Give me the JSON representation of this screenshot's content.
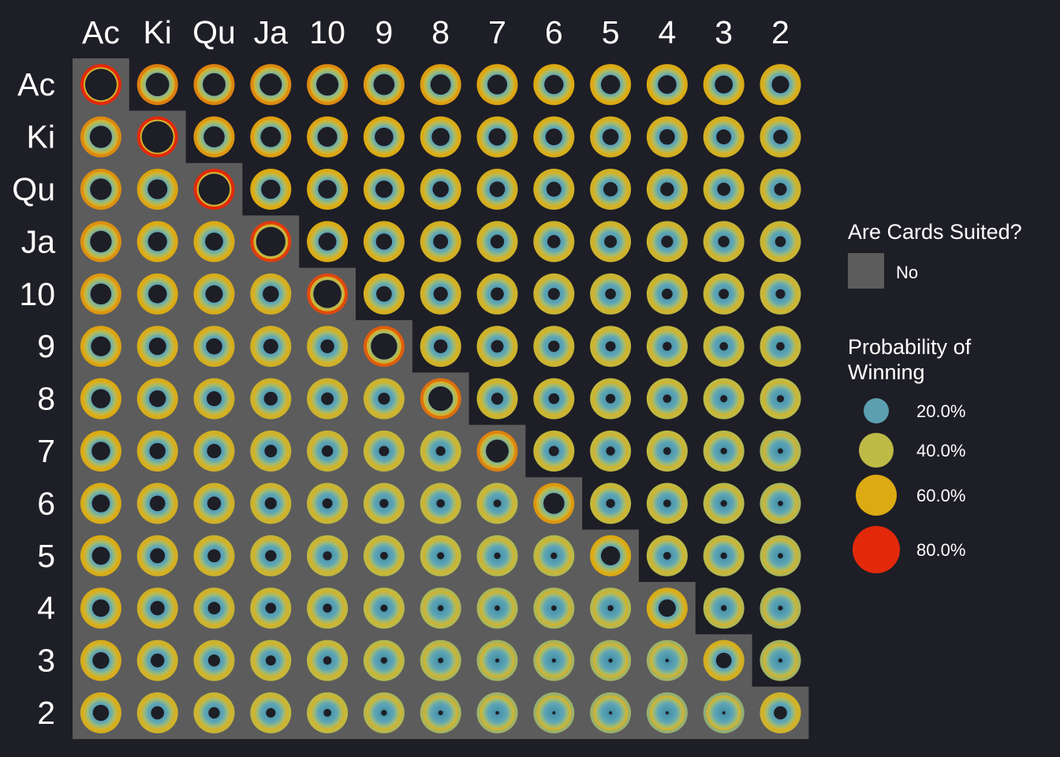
{
  "chart_data": {
    "type": "heatmap",
    "title": "",
    "xlabel": "",
    "ylabel": "",
    "ranks": [
      "Ac",
      "Ki",
      "Qu",
      "Ja",
      "10",
      "9",
      "8",
      "7",
      "6",
      "5",
      "4",
      "3",
      "2"
    ],
    "note_diagonal": "Pairs on diagonal; shaded lower triangle = offsuit (No)",
    "suited_legend": {
      "title": "Are Cards Suited?",
      "entries": [
        {
          "label": "No",
          "color": "#5c5c5c"
        }
      ]
    },
    "probability_legend": {
      "title_lines": [
        "Probability of",
        "Winning"
      ],
      "entries": [
        {
          "label": "20.0%",
          "value": 0.2,
          "color": "#5b9fb0"
        },
        {
          "label": "40.0%",
          "value": 0.4,
          "color": "#bdbb46"
        },
        {
          "label": "60.0%",
          "value": 0.6,
          "color": "#dcaa12"
        },
        {
          "label": "80.0%",
          "value": 0.8,
          "color": "#e3290a"
        }
      ]
    },
    "background_color": "#1e1e26",
    "offsuit_fill": "#5c5c5c",
    "win_probability": [
      [
        0.85,
        0.67,
        0.66,
        0.65,
        0.65,
        0.63,
        0.62,
        0.61,
        0.6,
        0.6,
        0.59,
        0.58,
        0.57
      ],
      [
        0.65,
        0.82,
        0.63,
        0.62,
        0.61,
        0.59,
        0.58,
        0.57,
        0.56,
        0.55,
        0.54,
        0.53,
        0.52
      ],
      [
        0.64,
        0.61,
        0.8,
        0.6,
        0.59,
        0.57,
        0.55,
        0.54,
        0.53,
        0.52,
        0.51,
        0.5,
        0.49
      ],
      [
        0.64,
        0.6,
        0.58,
        0.77,
        0.58,
        0.55,
        0.53,
        0.51,
        0.5,
        0.49,
        0.48,
        0.47,
        0.46
      ],
      [
        0.63,
        0.59,
        0.57,
        0.55,
        0.75,
        0.54,
        0.52,
        0.5,
        0.48,
        0.46,
        0.46,
        0.45,
        0.44
      ],
      [
        0.61,
        0.57,
        0.55,
        0.53,
        0.51,
        0.72,
        0.51,
        0.49,
        0.47,
        0.45,
        0.43,
        0.42,
        0.42
      ],
      [
        0.6,
        0.56,
        0.53,
        0.51,
        0.49,
        0.48,
        0.69,
        0.48,
        0.46,
        0.44,
        0.42,
        0.4,
        0.4
      ],
      [
        0.59,
        0.55,
        0.52,
        0.49,
        0.47,
        0.45,
        0.44,
        0.66,
        0.45,
        0.43,
        0.41,
        0.39,
        0.37
      ],
      [
        0.58,
        0.54,
        0.51,
        0.48,
        0.45,
        0.43,
        0.42,
        0.41,
        0.63,
        0.43,
        0.41,
        0.39,
        0.37
      ],
      [
        0.58,
        0.53,
        0.5,
        0.47,
        0.43,
        0.41,
        0.4,
        0.39,
        0.39,
        0.6,
        0.41,
        0.39,
        0.37
      ],
      [
        0.57,
        0.52,
        0.49,
        0.46,
        0.43,
        0.4,
        0.38,
        0.37,
        0.37,
        0.38,
        0.57,
        0.38,
        0.36
      ],
      [
        0.56,
        0.51,
        0.48,
        0.45,
        0.42,
        0.39,
        0.37,
        0.35,
        0.35,
        0.35,
        0.34,
        0.54,
        0.35
      ],
      [
        0.55,
        0.5,
        0.47,
        0.44,
        0.41,
        0.38,
        0.36,
        0.34,
        0.33,
        0.33,
        0.32,
        0.31,
        0.5
      ]
    ]
  }
}
